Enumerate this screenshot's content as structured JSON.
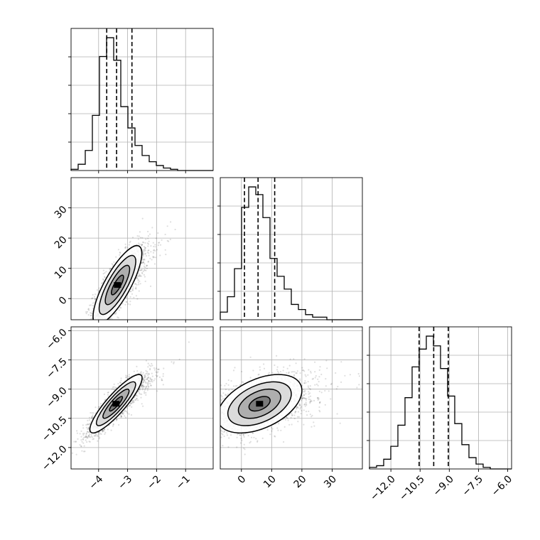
{
  "chart_data": {
    "type": "corner",
    "parameters": [
      {
        "ticks": [
          -4,
          -3,
          -2,
          -1
        ],
        "tick_labels": [
          "−4",
          "−3",
          "−2",
          "−1"
        ],
        "range": [
          -4.95,
          -0.05
        ],
        "quantiles": [
          -3.72,
          -3.38,
          -2.85
        ],
        "hist_edges": [
          -4.95,
          -4.705,
          -4.46,
          -4.215,
          -3.97,
          -3.725,
          -3.48,
          -3.235,
          -2.99,
          -2.745,
          -2.5,
          -2.255,
          -2.01,
          -1.765,
          -1.52,
          -1.275,
          -1.03,
          -0.785,
          -0.54,
          -0.295,
          -0.05
        ],
        "hist_counts": [
          1,
          5,
          16,
          44,
          91,
          106,
          88,
          51,
          34,
          20,
          12,
          7,
          4,
          2,
          1,
          0,
          0,
          0,
          0,
          0
        ]
      },
      {
        "ticks": [
          0,
          10,
          20,
          30
        ],
        "tick_labels": [
          "0",
          "10",
          "20",
          "30"
        ],
        "range": [
          -7,
          40
        ],
        "quantiles": [
          1.0,
          5.5,
          11.0
        ],
        "hist_edges": [
          -7,
          -4.65,
          -2.3,
          0.05,
          2.4,
          4.75,
          7.1,
          9.45,
          11.8,
          14.15,
          16.5,
          18.85,
          21.2,
          23.55,
          25.9,
          28.25,
          30.6,
          32.95,
          35.3,
          37.65,
          40
        ],
        "hist_counts": [
          3,
          9,
          20,
          44,
          52,
          49,
          40,
          24,
          17,
          12,
          6,
          4,
          2,
          1,
          1,
          0,
          0,
          0,
          0,
          0
        ]
      },
      {
        "ticks": [
          -12.0,
          -10.5,
          -9.0,
          -7.5,
          -6.0
        ],
        "tick_labels": [
          "−12.0",
          "−10.5",
          "−9.0",
          "−7.5",
          "−6.0"
        ],
        "range": [
          -13.1,
          -5.8
        ],
        "quantiles": [
          -10.55,
          -9.8,
          -9.05
        ],
        "hist_edges": [
          -13.1,
          -12.735,
          -12.37,
          -12.005,
          -11.64,
          -11.275,
          -10.91,
          -10.545,
          -10.18,
          -9.815,
          -9.45,
          -9.085,
          -8.72,
          -8.355,
          -7.99,
          -7.625,
          -7.26,
          -6.895,
          -6.53,
          -6.165,
          -5.8
        ],
        "hist_counts": [
          1,
          2,
          6,
          14,
          27,
          44,
          63,
          74,
          82,
          76,
          62,
          45,
          28,
          15,
          7,
          3,
          1,
          0,
          0,
          0
        ]
      }
    ],
    "pairs": [
      {
        "x_param": 0,
        "y_param": 1,
        "x_center": -3.35,
        "y_center": 4.5,
        "x_sd": 0.42,
        "y_sd": 6.5,
        "correlation": 0.8,
        "samples": 2200
      },
      {
        "x_param": 0,
        "y_param": 2,
        "x_center": -3.4,
        "y_center": -9.75,
        "x_sd": 0.45,
        "y_sd": 0.75,
        "correlation": 0.88,
        "samples": 2200
      },
      {
        "x_param": 1,
        "y_param": 2,
        "x_center": 6.0,
        "y_center": -9.75,
        "x_sd": 7.0,
        "y_sd": 0.75,
        "correlation": 0.45,
        "samples": 2200
      }
    ],
    "contour_levels_sigma": [
      0.5,
      1.0,
      1.5,
      2.0
    ],
    "grid": true
  }
}
